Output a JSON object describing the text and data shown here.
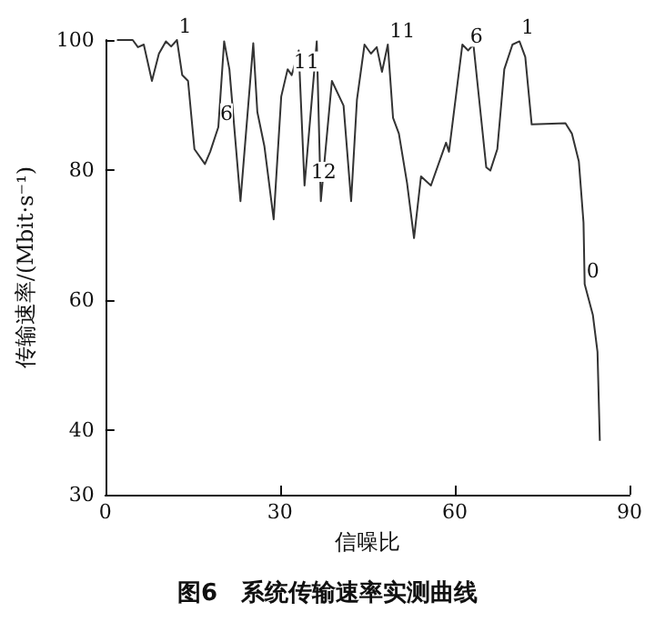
{
  "chart_data": {
    "type": "line",
    "title": "图6　系统传输速率实测曲线",
    "xlabel": "信噪比",
    "ylabel": "传输速率/(Mbit·s⁻¹)",
    "x": [
      2,
      4.7,
      5.6,
      6.6,
      8,
      9.2,
      10.4,
      11.3,
      12.3,
      13.2,
      14.2,
      15.3,
      17.1,
      18,
      19.4,
      20.4,
      21.3,
      23.2,
      25.4,
      26.1,
      27.3,
      28.9,
      30.2,
      31.3,
      32,
      33.2,
      34.2,
      36.3,
      37,
      38.9,
      40.9,
      42.2,
      43.2,
      44.5,
      45.6,
      46.6,
      47.5,
      48.5,
      49.4,
      50.4,
      51.8,
      53,
      54.2,
      55.9,
      58.5,
      59,
      61.3,
      62.3,
      63.2,
      65.4,
      66.1,
      67.3,
      68.5,
      69.9,
      71.1,
      72.1,
      73.2,
      79,
      80.1,
      81.3,
      82.1,
      82.3,
      83.7,
      84.5,
      84.9
    ],
    "series": [
      {
        "color": "#333333",
        "values": [
          100,
          100,
          98.9,
          99.3,
          93.7,
          97.9,
          99.8,
          99,
          100,
          94.6,
          93.7,
          83.2,
          80.9,
          82.8,
          86.6,
          99.8,
          95.5,
          75.2,
          99.5,
          88.9,
          83.7,
          72.4,
          91.3,
          95.5,
          94.6,
          98.4,
          77.6,
          99.8,
          75.2,
          93.7,
          89.9,
          75.2,
          90.8,
          99.3,
          97.9,
          98.9,
          95.1,
          99.3,
          88,
          85.6,
          78,
          69.5,
          79,
          77.6,
          84.2,
          82.8,
          99.3,
          98.4,
          99.3,
          80.4,
          79.9,
          83.2,
          95.5,
          99.3,
          99.8,
          97.4,
          87,
          87.2,
          85.6,
          81.3,
          71.9,
          62.4,
          57.7,
          52,
          38.3
        ]
      }
    ],
    "xlim": [
      0,
      90
    ],
    "xticks": [
      0,
      30,
      60,
      90
    ],
    "ylim": [
      30,
      100
    ],
    "yticks": [
      30,
      40,
      60,
      80,
      100
    ],
    "marker": "none",
    "line_style": "solid",
    "grid": false,
    "annotations": [
      {
        "text": "1",
        "x": 12.3,
        "y": 100
      },
      {
        "text": "6",
        "x": 19.4,
        "y": 86.6
      },
      {
        "text": "11",
        "x": 32,
        "y": 94.6
      },
      {
        "text": "12",
        "x": 35,
        "y": 77.6
      },
      {
        "text": "11",
        "x": 48.5,
        "y": 99.3
      },
      {
        "text": "6",
        "x": 62.3,
        "y": 98.4
      },
      {
        "text": "1",
        "x": 71.1,
        "y": 99.8
      },
      {
        "text": "0",
        "x": 82.3,
        "y": 62.4
      }
    ]
  }
}
